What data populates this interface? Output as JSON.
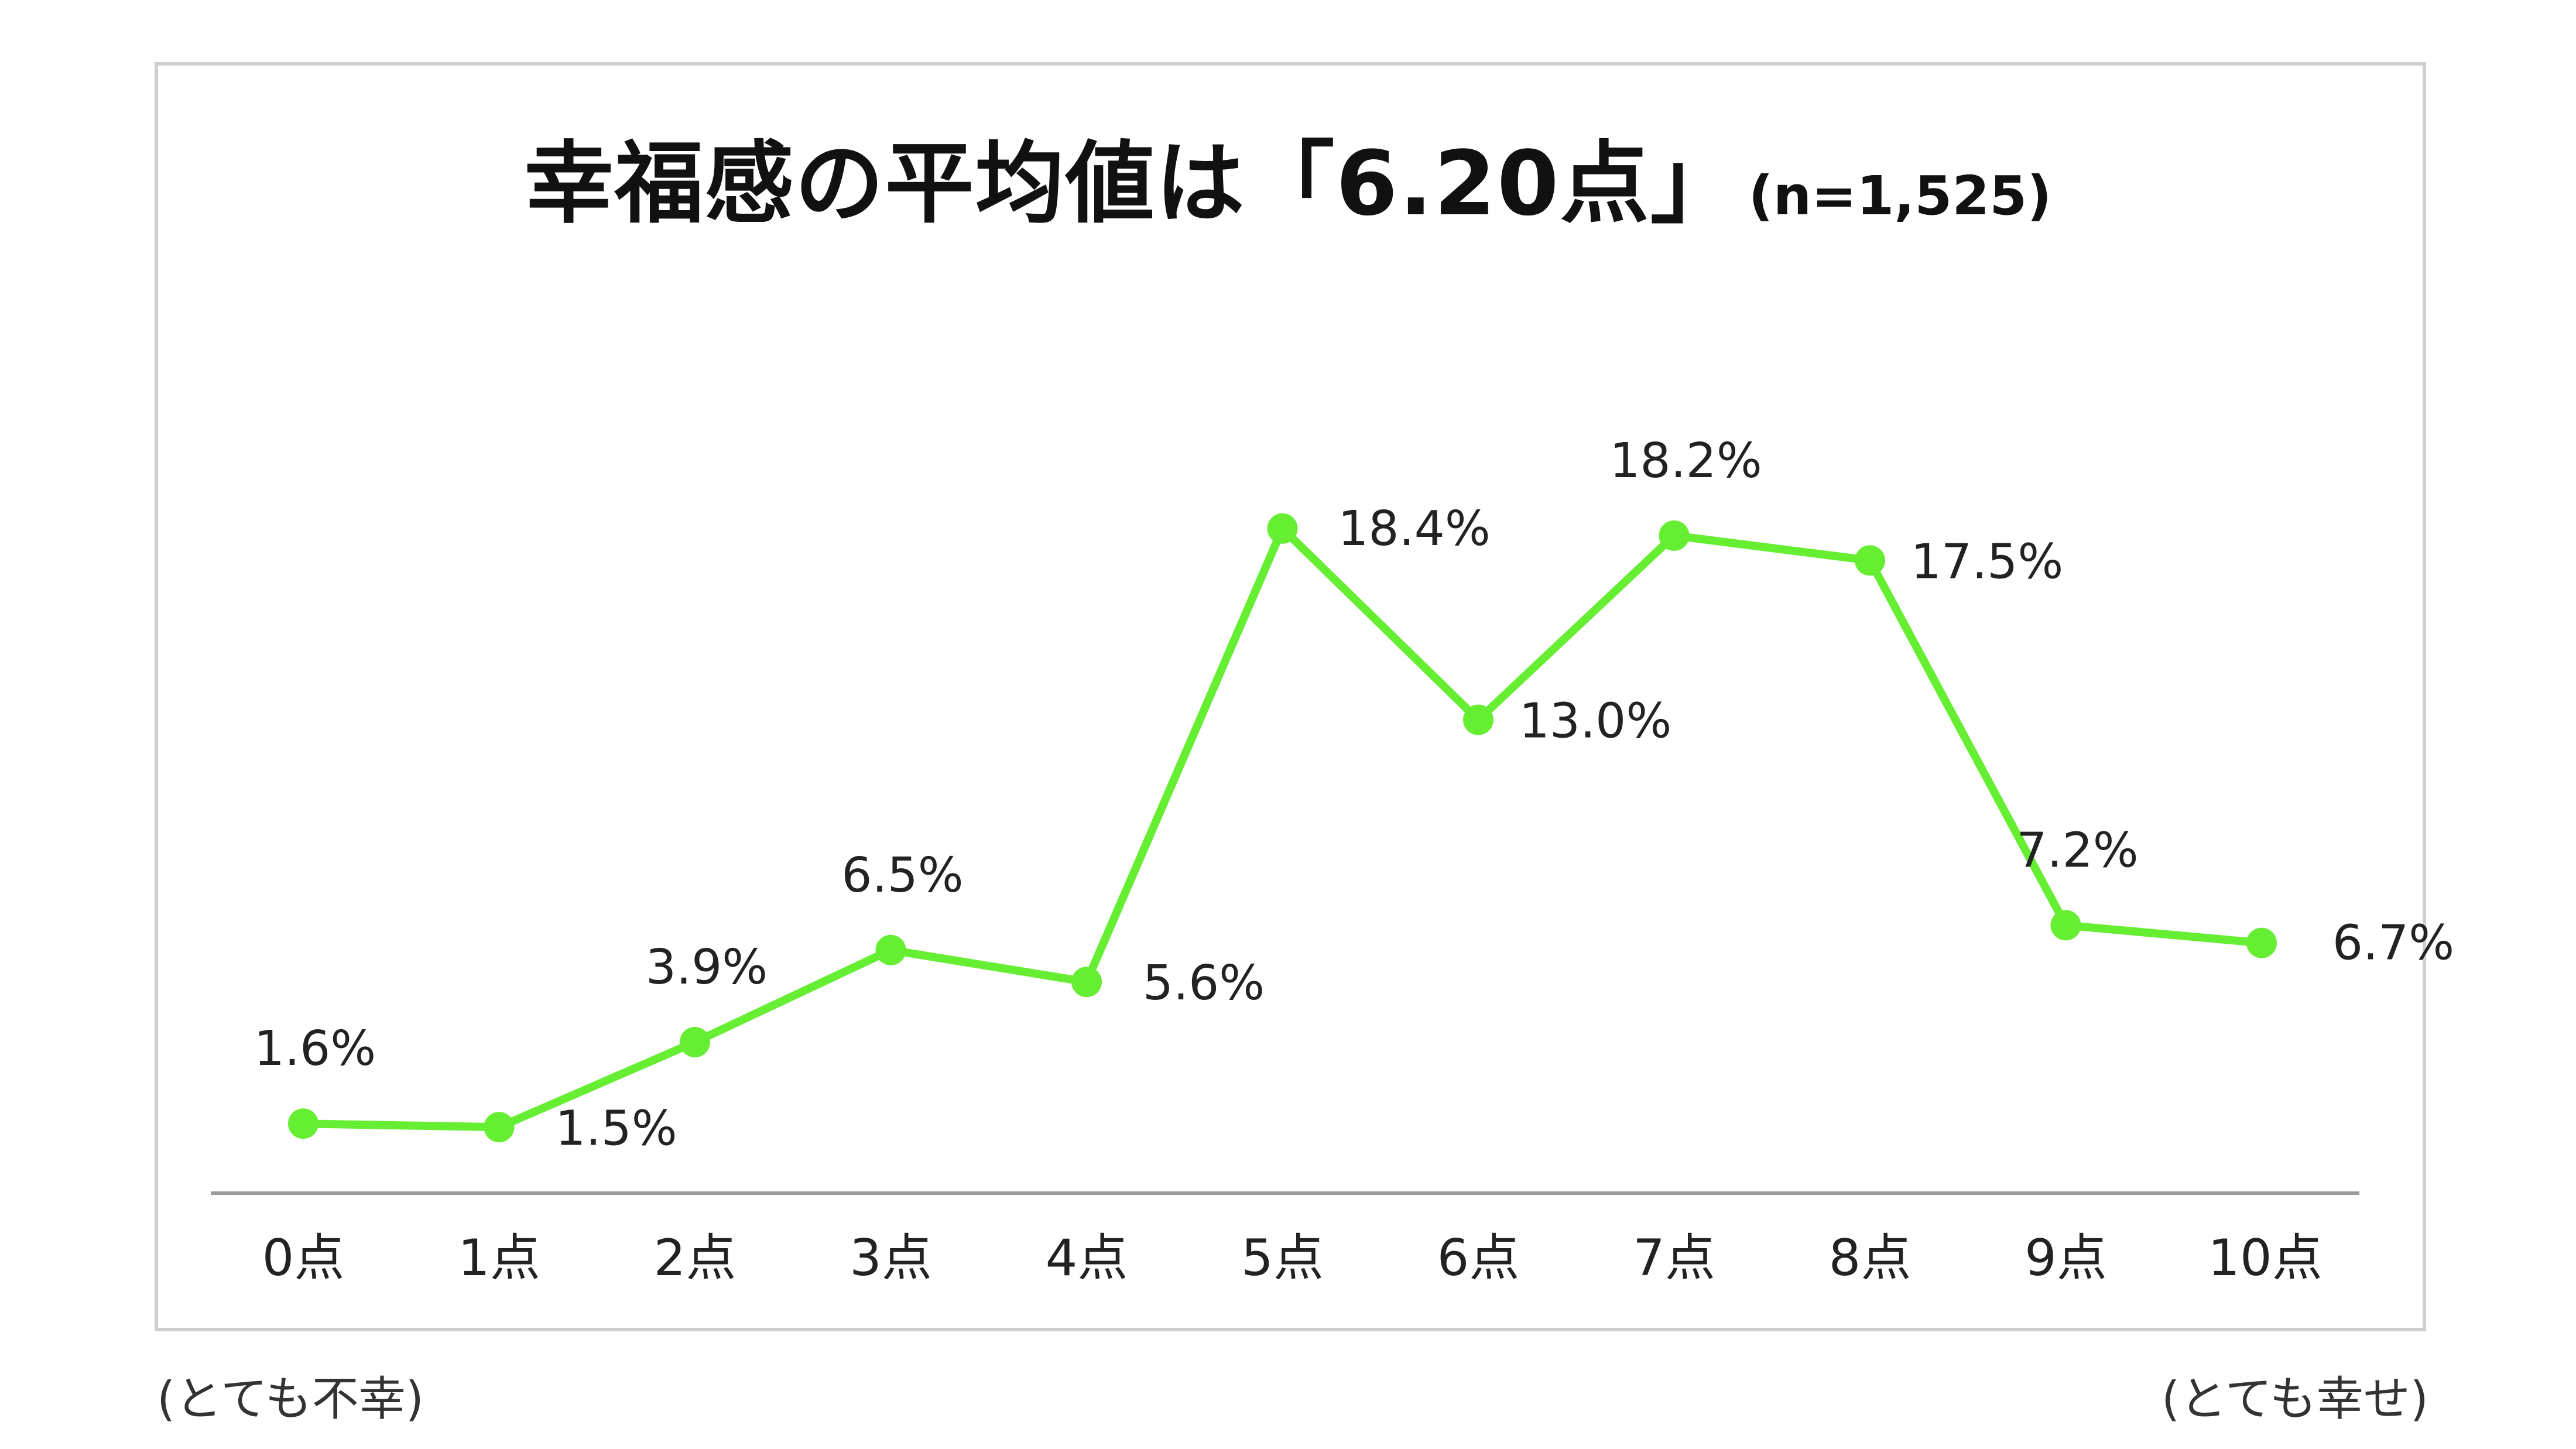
{
  "title": "幸福感の平均値は「6.20点」",
  "subtitle": "(n=1,525)",
  "notes": {
    "left": "(とても不幸)",
    "right": "(とても幸せ)"
  },
  "chart_data": {
    "type": "line",
    "title": "幸福感の平均値は「6.20点」",
    "subtitle": "(n=1,525)",
    "categories": [
      "0点",
      "1点",
      "2点",
      "3点",
      "4点",
      "5点",
      "6点",
      "7点",
      "8点",
      "9点",
      "10点"
    ],
    "series": [
      {
        "values": [
          1.6,
          1.5,
          3.9,
          6.5,
          5.6,
          18.4,
          13.0,
          18.2,
          17.5,
          7.2,
          6.7
        ],
        "labels": [
          "1.6%",
          "1.5%",
          "3.9%",
          "6.5%",
          "5.6%",
          "18.4%",
          "13.0%",
          "18.2%",
          "17.5%",
          "7.2%",
          "6.7%"
        ],
        "label_positions": [
          "above",
          "below-right",
          "above",
          "above",
          "below-right",
          "right",
          "below-right",
          "above",
          "below-right",
          "above",
          "right"
        ],
        "color": "#66ee33"
      }
    ],
    "ylim": [
      0,
      20
    ],
    "grid": false,
    "legend": "none",
    "axis_color": "#999999"
  }
}
